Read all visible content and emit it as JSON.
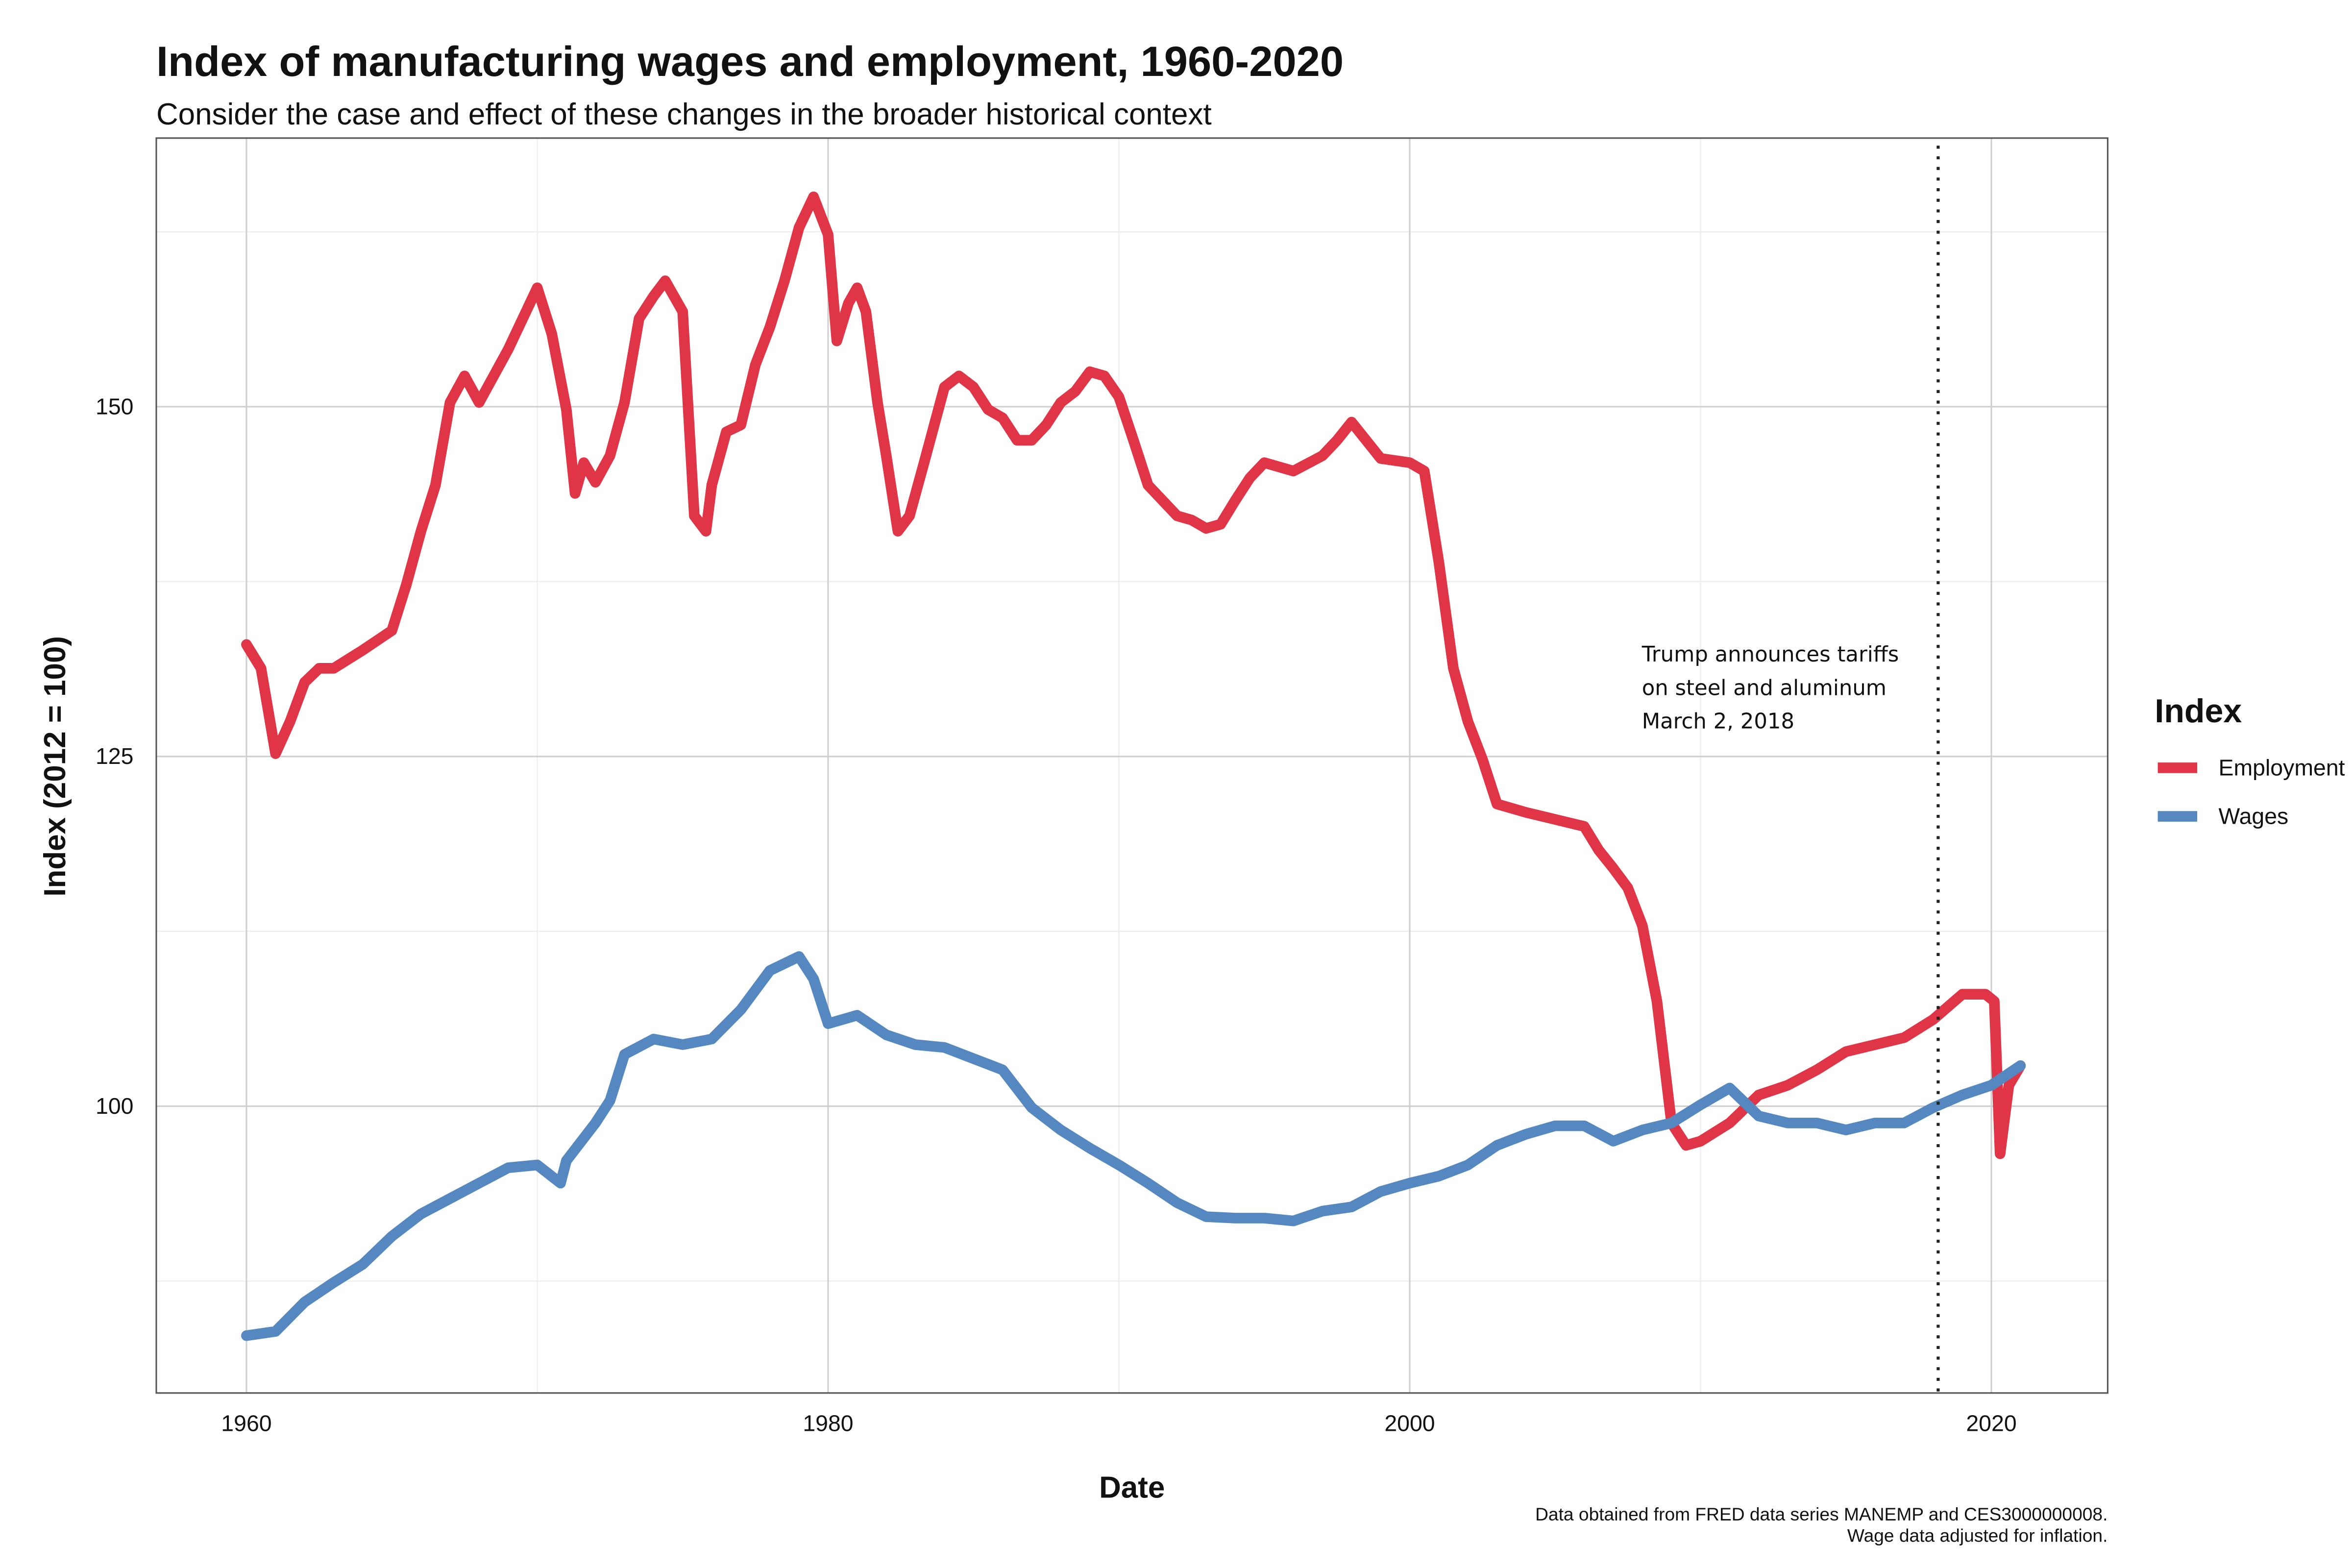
{
  "chart_data": {
    "type": "line",
    "title": "Index of manufacturing wages and employment, 1960-2020",
    "subtitle": "Consider the case and effect of these changes in the broader historical context",
    "x_label": "Date",
    "y_label": "Index (2012 = 100)",
    "caption": [
      "Data obtained from FRED data series MANEMP and CES3000000008.",
      "Wage data adjusted for inflation."
    ],
    "legend_title": "Index",
    "legend_position": "right",
    "grid": true,
    "xlim": [
      1956.9,
      2024.0
    ],
    "ylim": [
      79.5,
      169.2
    ],
    "xticks": [
      1960,
      1980,
      2000,
      2020
    ],
    "yticks": [
      100,
      125,
      150
    ],
    "x_minor_ticks": [
      1970,
      1990,
      2010
    ],
    "y_minor_ticks": [
      87.5,
      112.5,
      137.5,
      162.5
    ],
    "reference_line": {
      "x": 2018.17,
      "style": "dotted",
      "color": "#222222"
    },
    "annotation": [
      "Trump announces tariffs",
      "on steel and aluminum",
      "March 2, 2018"
    ],
    "series": [
      {
        "name": "Employment",
        "color": "#e03546",
        "x": [
          1960,
          1960.5,
          1961,
          1961.5,
          1962,
          1962.5,
          1963,
          1964,
          1965,
          1965.5,
          1966,
          1966.5,
          1967,
          1967.5,
          1968,
          1968.5,
          1969,
          1969.5,
          1970,
          1970.5,
          1971,
          1971.3,
          1971.6,
          1972,
          1972.5,
          1973,
          1973.5,
          1974,
          1974.4,
          1975,
          1975.4,
          1975.8,
          1976,
          1976.5,
          1977,
          1977.5,
          1978,
          1978.5,
          1979,
          1979.5,
          1980,
          1980.3,
          1980.7,
          1981,
          1981.3,
          1981.7,
          1982,
          1982.4,
          1982.8,
          1983.3,
          1984,
          1984.5,
          1985,
          1985.5,
          1986,
          1986.5,
          1987,
          1987.5,
          1988,
          1988.5,
          1989,
          1989.5,
          1990,
          1990.5,
          1991,
          1991.5,
          1992,
          1992.5,
          1993,
          1993.5,
          1994,
          1994.5,
          1995,
          1996,
          1997,
          1997.5,
          1998,
          1998.5,
          1999,
          2000,
          2000.5,
          2001,
          2001.5,
          2002,
          2002.5,
          2003,
          2004,
          2005,
          2006,
          2006.5,
          2007,
          2007.5,
          2008,
          2008.5,
          2009,
          2009.5,
          2010,
          2011,
          2012,
          2013,
          2014,
          2015,
          2016,
          2017,
          2018,
          2019,
          2019.8,
          2020.1,
          2020.3,
          2020.6,
          2021
        ],
        "values": [
          133,
          131.3,
          125.2,
          127.5,
          130.3,
          131.3,
          131.3,
          132.6,
          134,
          137.3,
          141.1,
          144.4,
          150.3,
          152.2,
          150.3,
          152.2,
          154.1,
          156.3,
          158.5,
          155.2,
          149.8,
          143.8,
          146,
          144.6,
          146.5,
          150.3,
          156.3,
          157.9,
          159,
          156.8,
          142.2,
          141.1,
          144.4,
          148.2,
          148.7,
          153,
          155.7,
          159,
          162.8,
          165,
          162.3,
          154.7,
          157.4,
          158.5,
          156.8,
          150.3,
          146.5,
          141.1,
          142.2,
          146,
          151.4,
          152.2,
          151.4,
          149.8,
          149.2,
          147.6,
          147.6,
          148.7,
          150.3,
          151.1,
          152.5,
          152.2,
          150.7,
          147.6,
          144.4,
          143.3,
          142.2,
          141.9,
          141.3,
          141.6,
          143.3,
          144.9,
          146,
          145.4,
          146.5,
          147.6,
          148.9,
          147.6,
          146.3,
          146,
          145.4,
          138.9,
          131.3,
          127.5,
          124.8,
          121.6,
          121,
          120.5,
          120,
          118.3,
          117,
          115.6,
          112.9,
          107.5,
          98.8,
          97.2,
          97.5,
          98.8,
          100.8,
          101.5,
          102.6,
          103.9,
          104.4,
          104.9,
          106.2,
          108,
          108,
          107.5,
          96.6,
          101.5,
          102.9
        ]
      },
      {
        "name": "Wages",
        "color": "#5588c0",
        "x": [
          1960,
          1961,
          1962,
          1963,
          1964,
          1965,
          1966,
          1967,
          1968,
          1969,
          1970,
          1970.8,
          1971,
          1972,
          1972.5,
          1973,
          1974,
          1975,
          1976,
          1977,
          1978,
          1979,
          1979.5,
          1980,
          1981,
          1982,
          1983,
          1984,
          1985,
          1986,
          1987,
          1988,
          1989,
          1990,
          1991,
          1992,
          1993,
          1994,
          1995,
          1996,
          1997,
          1998,
          1999,
          2000,
          2001,
          2002,
          2003,
          2004,
          2005,
          2006,
          2007,
          2008,
          2009,
          2010,
          2011,
          2012,
          2013,
          2014,
          2015,
          2016,
          2017,
          2018,
          2019,
          2020,
          2021
        ],
        "values": [
          83.6,
          83.9,
          86,
          87.4,
          88.7,
          90.7,
          92.3,
          93.4,
          94.5,
          95.6,
          95.8,
          94.5,
          96.1,
          98.8,
          100.4,
          103.7,
          104.8,
          104.4,
          104.8,
          106.9,
          109.7,
          110.7,
          109.1,
          105.9,
          106.5,
          105.1,
          104.4,
          104.2,
          103.4,
          102.6,
          99.9,
          98.3,
          97,
          95.8,
          94.5,
          93.1,
          92.1,
          92,
          92,
          91.8,
          92.5,
          92.8,
          93.9,
          94.5,
          95,
          95.8,
          97.2,
          98,
          98.6,
          98.6,
          97.5,
          98.3,
          98.8,
          100.1,
          101.3,
          99.3,
          98.8,
          98.8,
          98.3,
          98.8,
          98.8,
          99.9,
          100.8,
          101.5,
          102.9
        ]
      }
    ]
  }
}
